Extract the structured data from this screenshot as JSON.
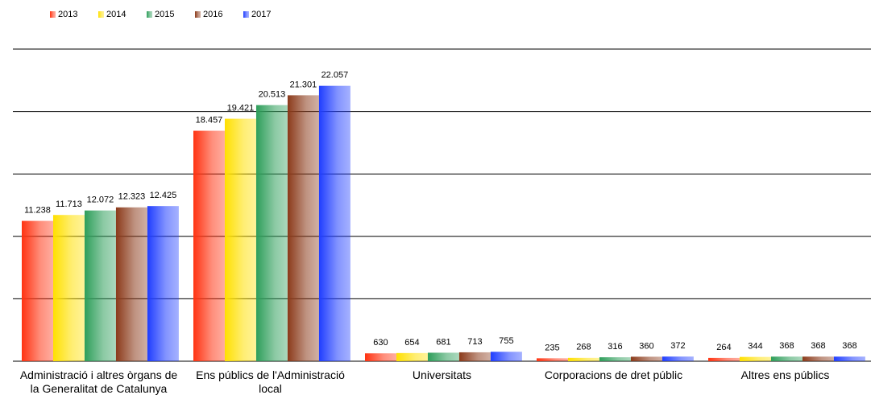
{
  "chart_data": {
    "type": "bar",
    "categories": [
      "Administració i altres òrgans de\nla Generalitat de Catalunya",
      "Ens públics de l'Administració\nlocal",
      "Universitats",
      "Corporacions de dret públic",
      "Altres ens públics"
    ],
    "series": [
      {
        "name": "2013",
        "color": "#ff3311",
        "values": [
          11238,
          18457,
          630,
          235,
          264
        ],
        "value_labels": [
          "11.238",
          "18.457",
          "630",
          "235",
          "264"
        ]
      },
      {
        "name": "2014",
        "color": "#ffe000",
        "values": [
          11713,
          19421,
          654,
          268,
          344
        ],
        "value_labels": [
          "11.713",
          "19.421",
          "654",
          "268",
          "344"
        ]
      },
      {
        "name": "2015",
        "color": "#2e9e5a",
        "values": [
          12072,
          20513,
          681,
          316,
          368
        ],
        "value_labels": [
          "12.072",
          "20.513",
          "681",
          "316",
          "368"
        ]
      },
      {
        "name": "2016",
        "color": "#8b3a1a",
        "values": [
          12323,
          21301,
          713,
          360,
          368
        ],
        "value_labels": [
          "12.323",
          "21.301",
          "713",
          "360",
          "368"
        ]
      },
      {
        "name": "2017",
        "color": "#1f3dff",
        "values": [
          12425,
          22057,
          755,
          372,
          368
        ],
        "value_labels": [
          "12.425",
          "22.057",
          "755",
          "372",
          "368"
        ]
      }
    ],
    "ylim": [
      0,
      25000
    ],
    "yticks": [
      0,
      5000,
      10000,
      15000,
      20000,
      25000
    ],
    "grid": true,
    "legend": "top-left"
  }
}
